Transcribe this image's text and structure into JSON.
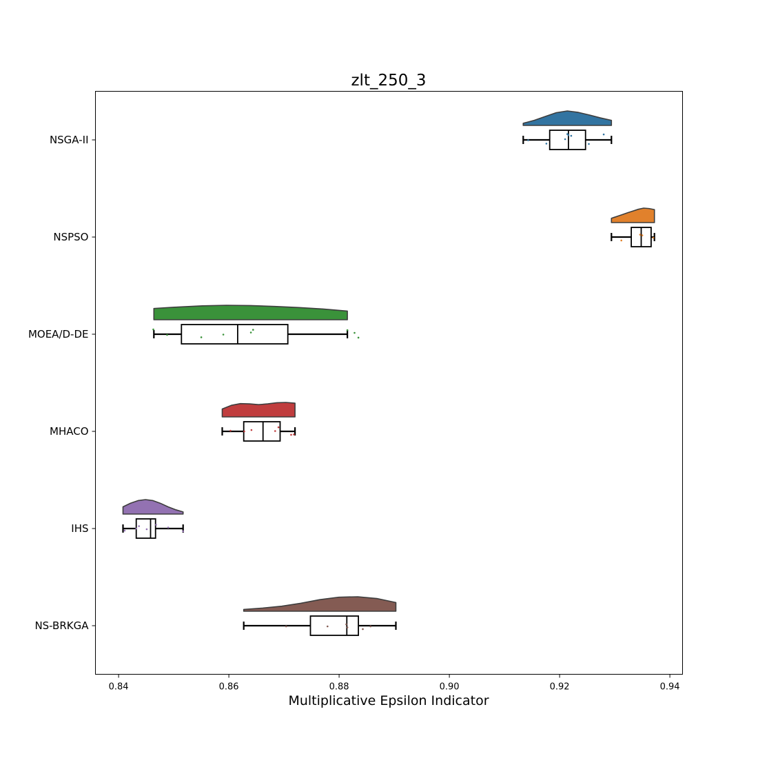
{
  "chart_data": {
    "type": "raincloud",
    "title": "zlt_250_3",
    "xlabel": "Multiplicative Epsilon Indicator",
    "ylabel": "",
    "xlim": [
      0.8358,
      0.9423
    ],
    "xticks": [
      0.84,
      0.86,
      0.88,
      0.9,
      0.92,
      0.94
    ],
    "xtick_labels": [
      "0.84",
      "0.86",
      "0.88",
      "0.90",
      "0.92",
      "0.94"
    ],
    "grid": false,
    "categories": [
      "NSGA-II",
      "NSPSO",
      "MOEA/D-DE",
      "MHACO",
      "IHS",
      "NS-BRKGA"
    ],
    "series": [
      {
        "name": "NSGA-II",
        "color": "#3274a1",
        "box": {
          "whislo": 0.9134,
          "q1": 0.9182,
          "median": 0.9216,
          "q3": 0.9247,
          "whishi": 0.9294
        },
        "points": [
          {
            "x": 0.9143,
            "jitter": 0.01
          },
          {
            "x": 0.9176,
            "jitter": 0.11
          },
          {
            "x": 0.921,
            "jitter": -0.02
          },
          {
            "x": 0.9214,
            "jitter": -0.17
          },
          {
            "x": 0.9216,
            "jitter": -0.14
          },
          {
            "x": 0.9221,
            "jitter": -0.12
          },
          {
            "x": 0.9253,
            "jitter": 0.12
          },
          {
            "x": 0.928,
            "jitter": -0.16
          }
        ],
        "density": [
          0.15,
          0.35,
          0.62,
          0.88,
          1.0,
          0.9,
          0.72,
          0.52,
          0.35
        ]
      },
      {
        "name": "NSPSO",
        "color": "#e1812c",
        "box": {
          "whislo": 0.9294,
          "q1": 0.933,
          "median": 0.9348,
          "q3": 0.9366,
          "whishi": 0.9372
        },
        "points": [
          {
            "x": 0.9312,
            "jitter": 0.1
          },
          {
            "x": 0.9346,
            "jitter": -0.07
          },
          {
            "x": 0.935,
            "jitter": -0.05
          },
          {
            "x": 0.937,
            "jitter": 0.02
          }
        ],
        "density": [
          0.3,
          0.42,
          0.55,
          0.68,
          0.8,
          0.92,
          1.0,
          0.97,
          0.9
        ]
      },
      {
        "name": "MOEA/D-DE",
        "color": "#3a923a",
        "box": {
          "whislo": 0.8464,
          "q1": 0.8514,
          "median": 0.8616,
          "q3": 0.8707,
          "whishi": 0.8815
        },
        "points": [
          {
            "x": 0.8463,
            "jitter": -0.14
          },
          {
            "x": 0.8488,
            "jitter": 0.02
          },
          {
            "x": 0.855,
            "jitter": 0.09
          },
          {
            "x": 0.859,
            "jitter": 0.01
          },
          {
            "x": 0.864,
            "jitter": -0.05
          },
          {
            "x": 0.8644,
            "jitter": -0.13
          },
          {
            "x": 0.8828,
            "jitter": -0.04
          },
          {
            "x": 0.8835,
            "jitter": 0.1
          },
          {
            "x": 0.8815,
            "jitter": -0.12
          }
        ],
        "density": [
          0.78,
          0.88,
          0.96,
          1.0,
          0.98,
          0.92,
          0.84,
          0.74,
          0.6
        ]
      },
      {
        "name": "MHACO",
        "color": "#c03d3e",
        "box": {
          "whislo": 0.8588,
          "q1": 0.8627,
          "median": 0.8662,
          "q3": 0.8693,
          "whishi": 0.872
        },
        "points": [
          {
            "x": 0.8603,
            "jitter": -0.02
          },
          {
            "x": 0.8628,
            "jitter": 0.0
          },
          {
            "x": 0.8641,
            "jitter": -0.04
          },
          {
            "x": 0.8684,
            "jitter": -0.01
          },
          {
            "x": 0.869,
            "jitter": -0.12
          },
          {
            "x": 0.8713,
            "jitter": 0.1
          },
          {
            "x": 0.8718,
            "jitter": 0.09
          }
        ],
        "density": [
          0.55,
          0.8,
          0.92,
          0.9,
          0.85,
          0.9,
          0.98,
          1.0,
          0.95
        ]
      },
      {
        "name": "IHS",
        "color": "#9372b2",
        "box": {
          "whislo": 0.8408,
          "q1": 0.8432,
          "median": 0.8458,
          "q3": 0.8467,
          "whishi": 0.8517
        },
        "points": [
          {
            "x": 0.8411,
            "jitter": 0.06
          },
          {
            "x": 0.8432,
            "jitter": 0.0
          },
          {
            "x": 0.8437,
            "jitter": -0.07
          },
          {
            "x": 0.8451,
            "jitter": 0.02
          },
          {
            "x": 0.8468,
            "jitter": -0.11
          },
          {
            "x": 0.849,
            "jitter": -0.03
          },
          {
            "x": 0.8517,
            "jitter": 0.08
          }
        ],
        "density": [
          0.5,
          0.75,
          0.93,
          1.0,
          0.93,
          0.74,
          0.5,
          0.3,
          0.15
        ]
      },
      {
        "name": "NS-BRKGA",
        "color": "#845b53",
        "box": {
          "whislo": 0.8627,
          "q1": 0.8748,
          "median": 0.8814,
          "q3": 0.8835,
          "whishi": 0.8903
        },
        "points": [
          {
            "x": 0.8704,
            "jitter": 0.02
          },
          {
            "x": 0.8779,
            "jitter": 0.02
          },
          {
            "x": 0.8813,
            "jitter": -0.04
          },
          {
            "x": 0.8815,
            "jitter": 0.05
          },
          {
            "x": 0.8843,
            "jitter": 0.1
          },
          {
            "x": 0.8857,
            "jitter": 0.02
          }
        ],
        "density": [
          0.12,
          0.22,
          0.35,
          0.55,
          0.8,
          0.97,
          1.0,
          0.88,
          0.6
        ]
      }
    ]
  }
}
